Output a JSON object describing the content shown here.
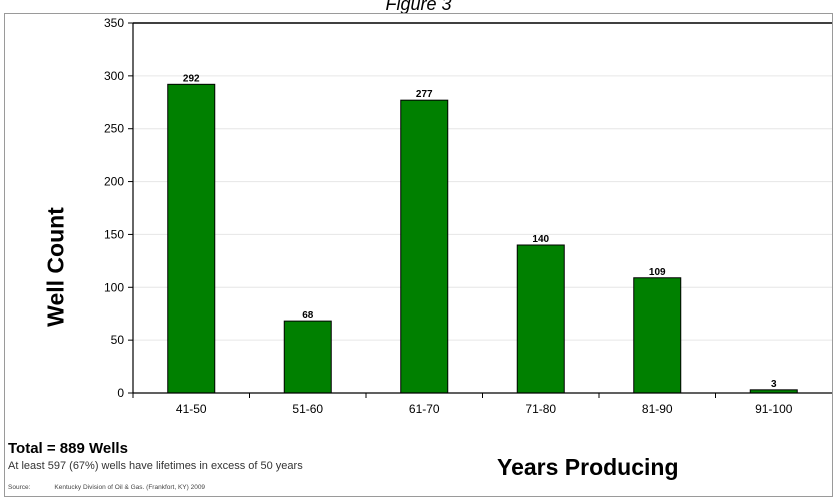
{
  "figure_title": "Figure 3",
  "chart_data": {
    "type": "bar",
    "categories": [
      "41-50",
      "51-60",
      "61-70",
      "71-80",
      "81-90",
      "91-100"
    ],
    "values": [
      292,
      68,
      277,
      140,
      109,
      3
    ],
    "data_labels": [
      "292",
      "68",
      "277",
      "140",
      "109",
      "3"
    ],
    "xlabel": "Years Producing",
    "ylabel": "Well Count",
    "ylim": [
      0,
      350
    ],
    "yticks": [
      0,
      50,
      100,
      150,
      200,
      250,
      300,
      350
    ],
    "grid": true,
    "bar_color": "#008000",
    "bar_edge_color": "#000000"
  },
  "summary": {
    "total": "Total = 889 Wells",
    "note": "At least 597 (67%) wells have lifetimes in excess of 50 years",
    "source_label": "Source:",
    "source_value": "Kentucky Division of Oil & Gas. (Frankfort, KY) 2009"
  }
}
